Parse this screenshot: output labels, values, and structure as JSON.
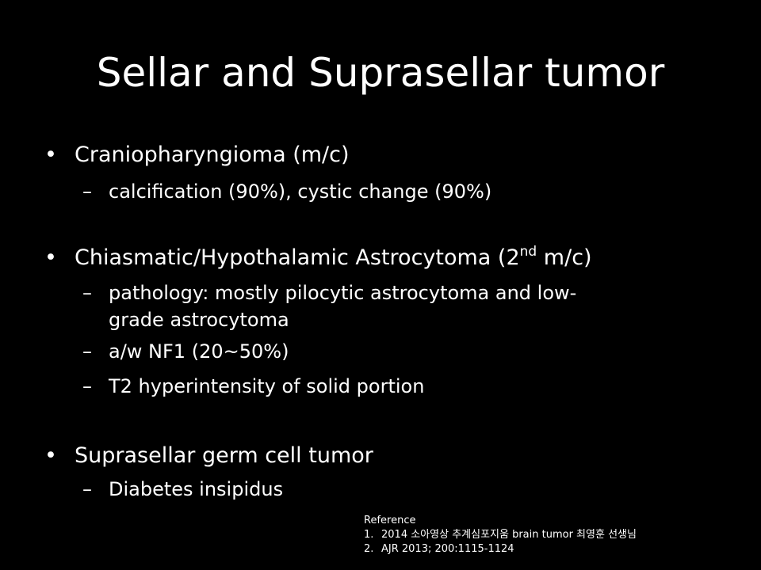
{
  "slide": {
    "title": "Sellar and Suprasellar tumor",
    "bullet_symbol": "•",
    "dash_symbol": "–",
    "bullets": [
      {
        "text": "Craniopharyngioma (m/c)",
        "subs": [
          "calcification (90%), cystic change (90%)"
        ]
      },
      {
        "text_before_sup": "Chiasmatic/Hypothalamic Astrocytoma (2",
        "sup": "nd",
        "text_after_sup": " m/c)",
        "subs": [
          "pathology: mostly pilocytic astrocytoma and low-",
          "grade astrocytoma",
          "a/w NF1 (20~50%)",
          "T2 hyperintensity of solid portion"
        ]
      },
      {
        "text": "Suprasellar germ cell tumor",
        "subs": [
          "Diabetes insipidus"
        ]
      }
    ],
    "reference": {
      "heading": "Reference",
      "items": [
        {
          "num": "1.",
          "text": "2014 소아영상 추계심포지움 brain tumor 최영훈 선생님"
        },
        {
          "num": "2.",
          "text": "AJR 2013; 200:1115-1124"
        }
      ]
    }
  }
}
